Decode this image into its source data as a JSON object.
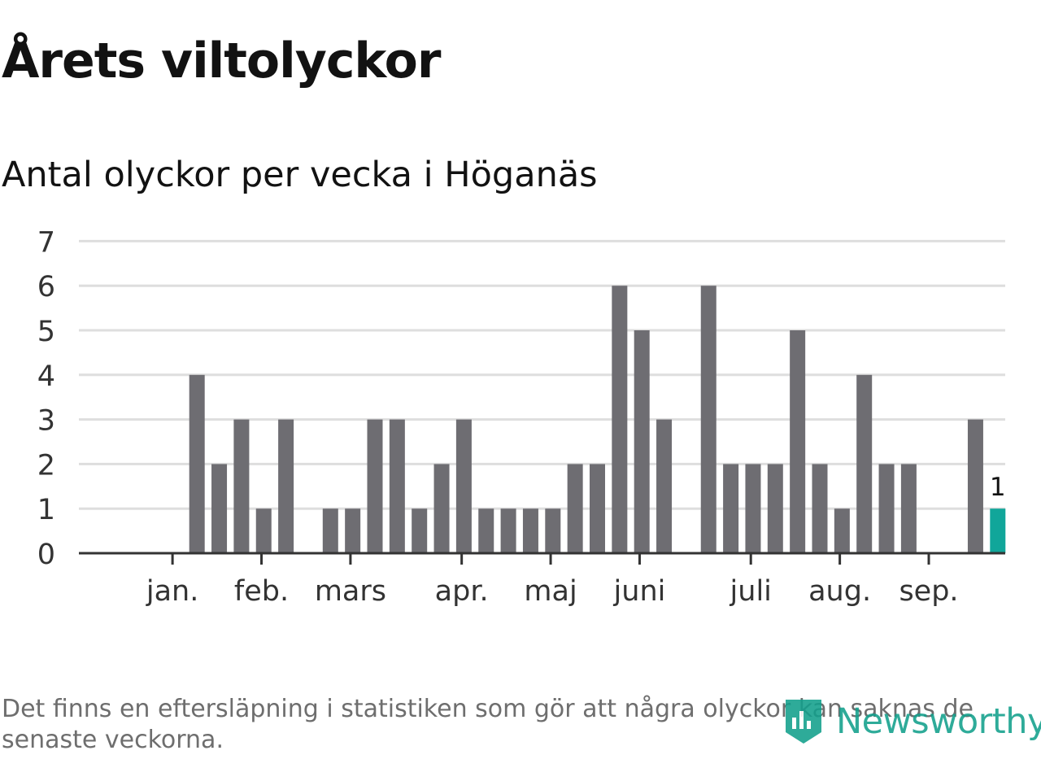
{
  "title": "Årets viltolyckor",
  "subtitle": "Antal olyckor per vecka i Höganäs",
  "footnote": "Det finns en eftersläpning i statistiken som gör att några olyckor kan saknas de senaste veckorna.",
  "brand": "Newsworthy",
  "colors": {
    "bar": "#6e6d72",
    "highlight": "#11a69a",
    "grid": "#dedede",
    "axis": "#333333",
    "text": "#121212",
    "footnote": "#6e6e6e",
    "brand": "#12a08c"
  },
  "chart_data": {
    "type": "bar",
    "title": "Antal olyckor per vecka i Höganäs",
    "ylim": [
      0,
      7
    ],
    "yticks": [
      0,
      1,
      2,
      3,
      4,
      5,
      6,
      7
    ],
    "grid": true,
    "values": [
      null,
      null,
      4,
      2,
      3,
      1,
      3,
      null,
      1,
      1,
      3,
      3,
      1,
      2,
      3,
      1,
      1,
      1,
      1,
      2,
      2,
      6,
      5,
      3,
      null,
      6,
      2,
      2,
      2,
      5,
      2,
      1,
      4,
      2,
      2,
      null,
      null,
      3,
      1
    ],
    "highlight_index": 38,
    "highlight_label": "1",
    "month_labels": [
      "jan.",
      "feb.",
      "mars",
      "apr.",
      "maj",
      "juni",
      "juli",
      "aug.",
      "sep."
    ],
    "month_positions": [
      0.9,
      4.9,
      8.9,
      13.9,
      17.9,
      21.9,
      26.9,
      30.9,
      34.9
    ]
  }
}
